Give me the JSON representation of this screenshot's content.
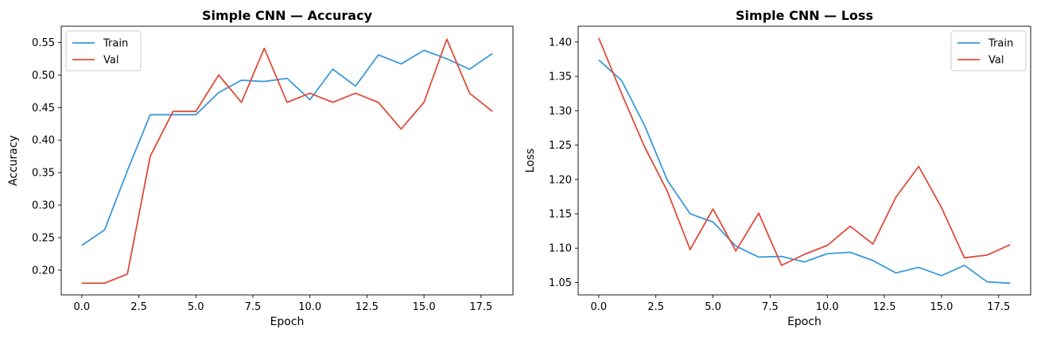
{
  "colors": {
    "train": "#3a9ad9",
    "val": "#e04b3b"
  },
  "chart_data": [
    {
      "type": "line",
      "title": "Simple CNN — Accuracy",
      "xlabel": "Epoch",
      "ylabel": "Accuracy",
      "xlim": [
        -0.9,
        18.9
      ],
      "ylim": [
        0.162,
        0.575
      ],
      "xticks": [
        "0.0",
        "2.5",
        "5.0",
        "7.5",
        "10.0",
        "12.5",
        "15.0",
        "17.5"
      ],
      "yticks": [
        "0.20",
        "0.25",
        "0.30",
        "0.35",
        "0.40",
        "0.45",
        "0.50",
        "0.55"
      ],
      "legend": "top-left",
      "grid": false,
      "x": [
        0,
        1,
        2,
        3,
        4,
        5,
        6,
        7,
        8,
        9,
        10,
        11,
        12,
        13,
        14,
        15,
        16,
        17,
        18
      ],
      "series": [
        {
          "name": "Train",
          "values": [
            0.238,
            0.262,
            0.353,
            0.439,
            0.439,
            0.439,
            0.473,
            0.492,
            0.49,
            0.495,
            0.462,
            0.509,
            0.483,
            0.531,
            0.517,
            0.538,
            0.525,
            0.509,
            0.533
          ]
        },
        {
          "name": "Val",
          "values": [
            0.18,
            0.18,
            0.194,
            0.375,
            0.444,
            0.444,
            0.5,
            0.458,
            0.541,
            0.458,
            0.472,
            0.458,
            0.472,
            0.458,
            0.417,
            0.458,
            0.555,
            0.472,
            0.444
          ]
        }
      ]
    },
    {
      "type": "line",
      "title": "Simple CNN — Loss",
      "xlabel": "Epoch",
      "ylabel": "Loss",
      "xlim": [
        -0.9,
        18.9
      ],
      "ylim": [
        1.032,
        1.423
      ],
      "xticks": [
        "0.0",
        "2.5",
        "5.0",
        "7.5",
        "10.0",
        "12.5",
        "15.0",
        "17.5"
      ],
      "yticks": [
        "1.05",
        "1.10",
        "1.15",
        "1.20",
        "1.25",
        "1.30",
        "1.35",
        "1.40"
      ],
      "legend": "top-right",
      "grid": false,
      "x": [
        0,
        1,
        2,
        3,
        4,
        5,
        6,
        7,
        8,
        9,
        10,
        11,
        12,
        13,
        14,
        15,
        16,
        17,
        18
      ],
      "series": [
        {
          "name": "Train",
          "values": [
            1.374,
            1.344,
            1.279,
            1.199,
            1.15,
            1.138,
            1.103,
            1.087,
            1.088,
            1.08,
            1.092,
            1.094,
            1.082,
            1.064,
            1.072,
            1.06,
            1.075,
            1.051,
            1.049
          ]
        },
        {
          "name": "Val",
          "values": [
            1.406,
            1.325,
            1.248,
            1.183,
            1.098,
            1.157,
            1.096,
            1.151,
            1.075,
            1.091,
            1.104,
            1.132,
            1.106,
            1.174,
            1.219,
            1.159,
            1.086,
            1.09,
            1.105
          ]
        }
      ]
    }
  ]
}
